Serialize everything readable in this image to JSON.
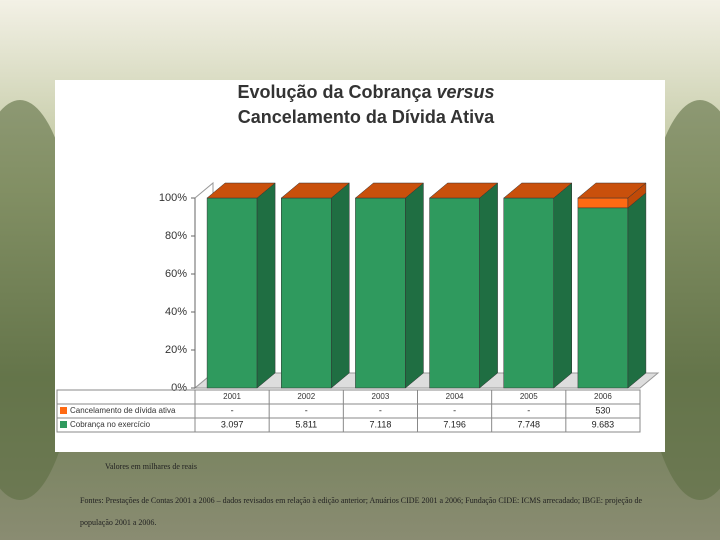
{
  "chart_data": {
    "type": "stacked-bar-3d",
    "title": [
      "Evolução da Cobrança ",
      "versus",
      "Cancelamento da Dívida Ativa"
    ],
    "categories": [
      "2001",
      "2002",
      "2003",
      "2004",
      "2005",
      "2006"
    ],
    "series": [
      {
        "name": "Cancelamento de dívida ativa",
        "color": "#ff6a13",
        "values": [
          null,
          null,
          null,
          null,
          null,
          530
        ],
        "value_labels": [
          "-",
          "-",
          "-",
          "-",
          "-",
          "530"
        ]
      },
      {
        "name": "Cobrança no exercício",
        "color": "#2f9a5e",
        "values": [
          3097,
          5811,
          7118,
          7196,
          7748,
          9683
        ],
        "value_labels": [
          "3.097",
          "5.811",
          "7.118",
          "7.196",
          "7.748",
          "9.683"
        ]
      }
    ],
    "ylim": [
      0,
      100
    ],
    "yticks": [
      {
        "value": 0,
        "label": "0%"
      },
      {
        "value": 20,
        "label": "20%"
      },
      {
        "value": 40,
        "label": "40%"
      },
      {
        "value": 60,
        "label": "60%"
      },
      {
        "value": 80,
        "label": "80%"
      },
      {
        "value": 100,
        "label": "100%"
      }
    ],
    "note": "Valores em milhares de reais",
    "source": "Fontes: Prestações de Contas 2001 a 2006 – dados revisados em relação à edição anterior; Anuários CIDE 2001 a 2006; Fundação CIDE: ICMS arrecadado; IBGE: projeção de população 2001 a 2006."
  }
}
